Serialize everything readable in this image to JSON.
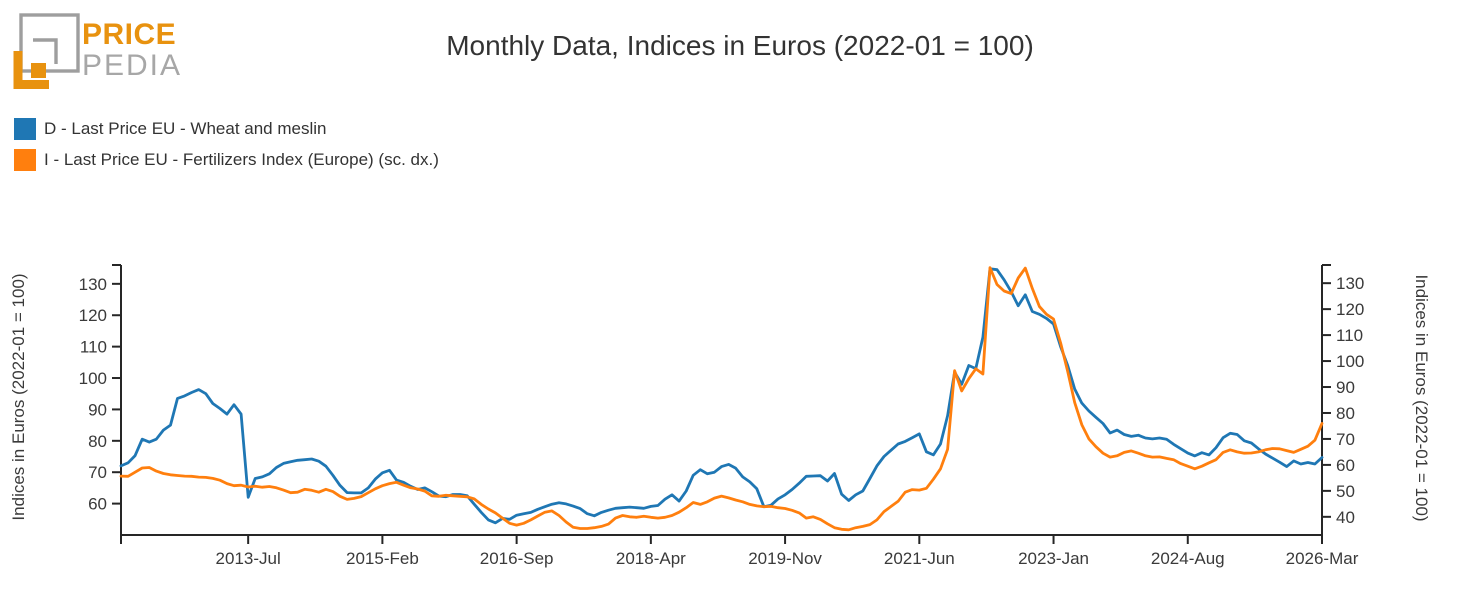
{
  "header": {
    "brand_top": "PRICE",
    "brand_bottom": "PEDIA",
    "title": "Monthly Data, Indices in Euros (2022-01 = 100)"
  },
  "legend": {
    "items": [
      {
        "label": "D - Last Price EU - Wheat and meslin",
        "color": "#1f77b4"
      },
      {
        "label": "I - Last Price EU - Fertilizers Index (Europe) (sc. dx.)",
        "color": "#ff7f0e"
      }
    ]
  },
  "colors": {
    "series_blue": "#1f77b4",
    "series_orange": "#ff7f0e",
    "axis": "#262626",
    "text": "#3a3a3a",
    "logo_orange": "#E8920F",
    "logo_gray": "#9E9E9E"
  },
  "chart_data": {
    "type": "line",
    "title": "Monthly Data, Indices in Euros (2022-01 = 100)",
    "x_frequency": "monthly",
    "x_start": "2012-01",
    "x_end": "2026-03",
    "grid": false,
    "legend_position": "top-left",
    "x_ticks": [
      {
        "m": 18,
        "label": "2013-Jul"
      },
      {
        "m": 37,
        "label": "2015-Feb"
      },
      {
        "m": 56,
        "label": "2016-Sep"
      },
      {
        "m": 75,
        "label": "2018-Apr"
      },
      {
        "m": 94,
        "label": "2019-Nov"
      },
      {
        "m": 113,
        "label": "2021-Jun"
      },
      {
        "m": 132,
        "label": "2023-Jan"
      },
      {
        "m": 151,
        "label": "2024-Aug"
      },
      {
        "m": 170,
        "label": "2026-Mar"
      }
    ],
    "left_axis": {
      "label": "Indices in Euros (2022-01 = 100)",
      "ticks": [
        130,
        120,
        110,
        100,
        90,
        80,
        70,
        60
      ],
      "min": 50,
      "max": 136
    },
    "right_axis": {
      "label": "Indices in Euros (2022-01 = 100)",
      "ticks": [
        130,
        120,
        110,
        100,
        90,
        80,
        70,
        60,
        50,
        40
      ],
      "min": 33,
      "max": 137
    },
    "series": [
      {
        "name": "D - Last Price EU - Wheat and meslin",
        "axis": "left",
        "color": "#1f77b4",
        "values": [
          72,
          73,
          75.3,
          80.5,
          79.6,
          80.5,
          83.4,
          85,
          93.5,
          94.3,
          95.4,
          96.3,
          95,
          91.9,
          90.3,
          88.5,
          91.5,
          88.5,
          62,
          68,
          68.5,
          69.5,
          71.5,
          72.8,
          73.3,
          73.8,
          74,
          74.2,
          73.5,
          71.9,
          69,
          65.8,
          63.5,
          63.4,
          63.4,
          65,
          67.8,
          69.8,
          70.6,
          67.5,
          66.8,
          65.5,
          64.5,
          65,
          63.8,
          62.4,
          62.2,
          62.9,
          62.9,
          62.5,
          59.8,
          57.2,
          54.8,
          53.9,
          55.3,
          55,
          56.3,
          56.8,
          57.2,
          58.2,
          59,
          59.8,
          60.3,
          59.9,
          59.2,
          58.4,
          56.8,
          56.1,
          57.2,
          57.9,
          58.5,
          58.7,
          58.9,
          58.7,
          58.5,
          59.1,
          59.4,
          61.4,
          62.8,
          60.8,
          64,
          69,
          70.8,
          69.5,
          70,
          71.8,
          72.5,
          71.3,
          68.5,
          66.9,
          64.7,
          59,
          59.5,
          61.5,
          62.8,
          64.5,
          66.5,
          68.7,
          68.8,
          68.9,
          67.2,
          69.6,
          63,
          61,
          62.8,
          64,
          68,
          72,
          75,
          77,
          79,
          79.8,
          81,
          82.2,
          76.5,
          75.5,
          79,
          88,
          101.9,
          98,
          104,
          103,
          113,
          134.8,
          134.5,
          131.3,
          127.5,
          123,
          126.5,
          121.2,
          120.3,
          119,
          117.2,
          110,
          104,
          96.5,
          92,
          89.5,
          87.5,
          85.5,
          82.5,
          83.4,
          82,
          81.4,
          81.8,
          80.9,
          80.6,
          80.9,
          80.5,
          78.9,
          77.5,
          76.1,
          75.2,
          76.2,
          75.5,
          77.8,
          81,
          82.4,
          82,
          80,
          79.3,
          77.5,
          75.8,
          74.5,
          73.2,
          71.8,
          73.6,
          72.6,
          73.1,
          72.6,
          74.7
        ]
      },
      {
        "name": "I - Last Price EU - Fertilizers Index (Europe) (sc. dx.)",
        "axis": "right",
        "color": "#ff7f0e",
        "values": [
          55.7,
          55.6,
          57.2,
          58.8,
          59,
          57.6,
          56.7,
          56.2,
          55.9,
          55.7,
          55.6,
          55.3,
          55.2,
          54.8,
          54.1,
          52.8,
          52,
          52.2,
          51.5,
          51.8,
          51.4,
          51.7,
          51.2,
          50.3,
          49.3,
          49.5,
          50.6,
          50.2,
          49.5,
          50.6,
          49.7,
          47.9,
          46.7,
          47.1,
          47.8,
          49.3,
          50.8,
          52,
          52.8,
          53.3,
          52.2,
          51.2,
          50.7,
          49.9,
          48.1,
          47.9,
          48.3,
          48.1,
          47.9,
          47.7,
          46.9,
          44.8,
          43,
          41.5,
          39.5,
          37.5,
          36.8,
          37.5,
          38.8,
          40.3,
          41.8,
          42.3,
          40.5,
          38,
          36,
          35.5,
          35.5,
          35.8,
          36.3,
          37.2,
          39.5,
          40.5,
          40,
          39.8,
          40.2,
          39.8,
          39.5,
          39.8,
          40.5,
          41.8,
          43.5,
          45.5,
          44.8,
          45.8,
          47.2,
          48,
          47.3,
          46.5,
          45.8,
          44.8,
          44.2,
          43.9,
          44,
          43.5,
          43.2,
          42.5,
          41.5,
          39.5,
          40,
          39,
          37.3,
          35.8,
          35.2,
          35,
          35.8,
          36.3,
          37,
          38.8,
          42,
          44,
          46,
          49.5,
          50.5,
          50.3,
          51,
          54.5,
          58.5,
          66,
          96.3,
          88.5,
          93.2,
          97,
          95,
          136,
          129.5,
          127,
          126,
          132,
          135.8,
          128,
          121,
          118,
          116.2,
          107,
          96,
          84,
          75.5,
          70,
          67,
          64.5,
          63,
          63.5,
          64.8,
          65.4,
          64.5,
          63.5,
          63,
          63.1,
          62.5,
          62,
          60.5,
          59.5,
          58.5,
          59.5,
          60.8,
          62,
          64.8,
          65.8,
          65,
          64.5,
          64.6,
          65,
          65.8,
          66.3,
          66.2,
          65.5,
          64.8,
          66,
          67.2,
          69.5,
          76
        ]
      }
    ]
  }
}
